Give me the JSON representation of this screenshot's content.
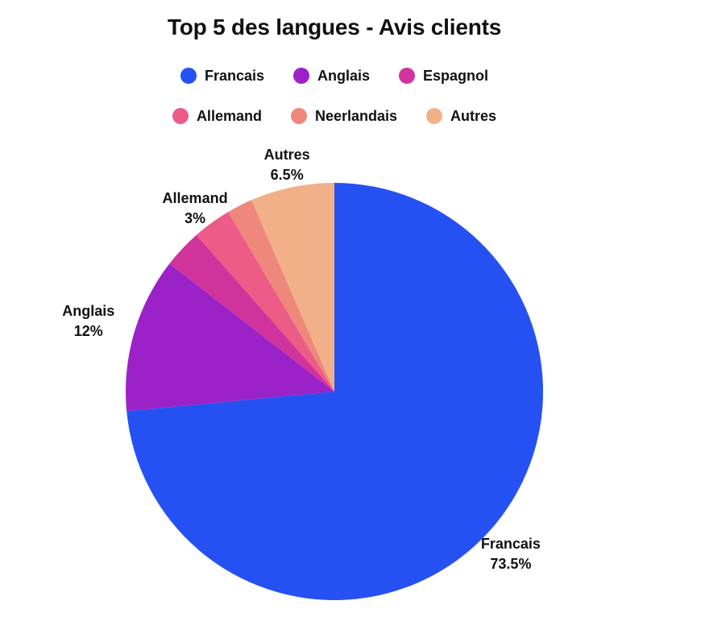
{
  "chart_data": {
    "type": "pie",
    "title": "Top 5 des langues - Avis clients",
    "legend_position": "top",
    "slices": [
      {
        "label": "Francais",
        "value": 73.5,
        "display": "73.5%",
        "color": "#2651f2",
        "show_label": true
      },
      {
        "label": "Anglais",
        "value": 12,
        "display": "12%",
        "color": "#9b22c6",
        "show_label": true
      },
      {
        "label": "Espagnol",
        "value": 3,
        "display": "3%",
        "color": "#d1339c",
        "show_label": false
      },
      {
        "label": "Allemand",
        "value": 3,
        "display": "3%",
        "color": "#ec5c86",
        "show_label": true
      },
      {
        "label": "Neerlandais",
        "value": 2,
        "display": "2%",
        "color": "#ee877c",
        "show_label": false
      },
      {
        "label": "Autres",
        "value": 6.5,
        "display": "6.5%",
        "color": "#f2b088",
        "show_label": true
      }
    ]
  }
}
